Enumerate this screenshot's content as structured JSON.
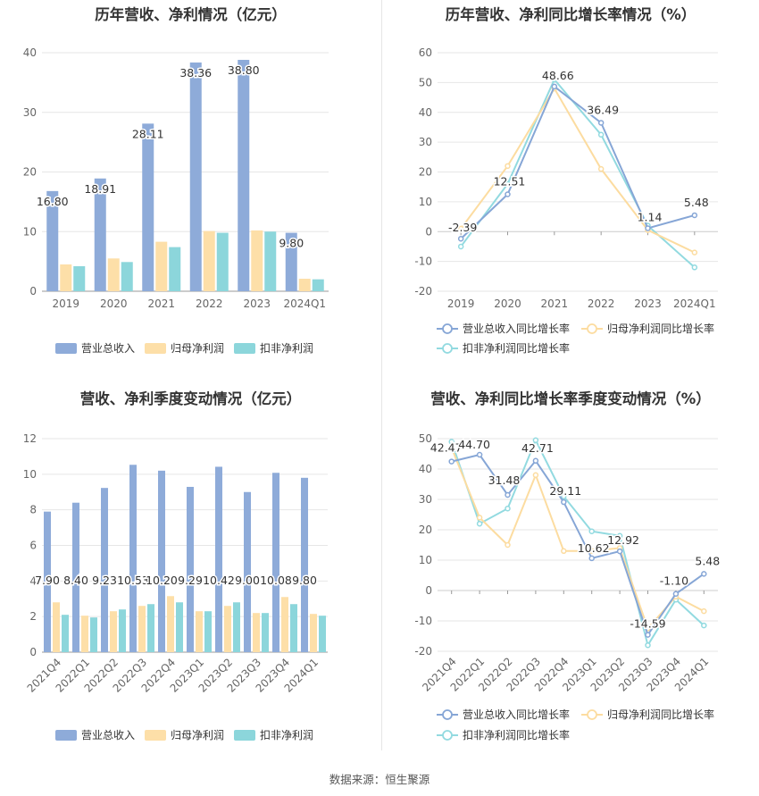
{
  "footer": {
    "source": "数据来源：恒生聚源"
  },
  "legend_labels": {
    "revenue": "营业总收入",
    "net_profit": "归母净利润",
    "deducted_profit": "扣非净利润",
    "revenue_growth": "营业总收入同比增长率",
    "net_profit_growth": "归母净利润同比增长率",
    "deducted_growth": "扣非净利润同比增长率"
  },
  "colors": {
    "revenue": "#8eabd9",
    "net_profit": "#fddfa8",
    "deducted_profit": "#8cd6db",
    "revenue_line": "#86a6d6",
    "net_line": "#fcdca0",
    "deducted_line": "#92dae0",
    "grid": "#e6e6e6",
    "axis_text": "#666666"
  },
  "chart_data": [
    {
      "type": "bar",
      "title": "历年营收、净利情况（亿元）",
      "categories": [
        "2019",
        "2020",
        "2021",
        "2022",
        "2023",
        "2024Q1"
      ],
      "ylim": [
        0,
        40
      ],
      "yticks": [
        0,
        10,
        20,
        30,
        40
      ],
      "series": [
        {
          "name": "营业总收入",
          "values": [
            16.8,
            18.91,
            28.11,
            38.36,
            38.8,
            9.8
          ],
          "labels": [
            "16.80",
            "18.91",
            "28.11",
            "38.36",
            "38.80",
            "9.80"
          ]
        },
        {
          "name": "归母净利润",
          "values": [
            4.5,
            5.5,
            8.3,
            10.1,
            10.2,
            2.1
          ]
        },
        {
          "name": "扣非净利润",
          "values": [
            4.2,
            4.9,
            7.4,
            9.8,
            10.0,
            2.0
          ]
        }
      ],
      "grid": true,
      "legend": "bottom"
    },
    {
      "type": "line",
      "title": "历年营收、净利同比增长率情况（%）",
      "categories": [
        "2019",
        "2020",
        "2021",
        "2022",
        "2023",
        "2024Q1"
      ],
      "ylim": [
        -20,
        60
      ],
      "yticks": [
        -20,
        -10,
        0,
        10,
        20,
        30,
        40,
        50,
        60
      ],
      "series": [
        {
          "name": "营业总收入同比增长率",
          "values": [
            -2.39,
            12.51,
            48.66,
            36.49,
            1.14,
            5.48
          ],
          "labels": [
            "-2.39",
            "12.51",
            "48.66",
            "36.49",
            "1.14",
            "5.48"
          ]
        },
        {
          "name": "归母净利润同比增长率",
          "values": [
            1.0,
            22.0,
            48.0,
            21.0,
            0.5,
            -7.0
          ]
        },
        {
          "name": "扣非净利润同比增长率",
          "values": [
            -5.0,
            16.0,
            51.0,
            32.5,
            2.0,
            -12.0
          ]
        }
      ],
      "grid": true,
      "legend": "bottom"
    },
    {
      "type": "bar",
      "title": "营收、净利季度变动情况（亿元）",
      "categories": [
        "2021Q4",
        "2022Q1",
        "2022Q2",
        "2022Q3",
        "2022Q4",
        "2023Q1",
        "2023Q2",
        "2023Q3",
        "2023Q4",
        "2024Q1"
      ],
      "ylim": [
        0,
        12
      ],
      "yticks": [
        0,
        2,
        4,
        6,
        8,
        10,
        12
      ],
      "series": [
        {
          "name": "营业总收入",
          "values": [
            7.9,
            8.4,
            9.23,
            10.53,
            10.2,
            9.29,
            10.42,
            9.0,
            10.08,
            9.8
          ],
          "labels": [
            "7.90",
            "8.40",
            "9.23",
            "10.53",
            "10.20",
            "9.29",
            "10.42",
            "9.00",
            "10.08",
            "9.80"
          ]
        },
        {
          "name": "归母净利润",
          "values": [
            2.8,
            2.05,
            2.3,
            2.6,
            3.15,
            2.3,
            2.6,
            2.2,
            3.1,
            2.15
          ]
        },
        {
          "name": "扣非净利润",
          "values": [
            2.1,
            1.95,
            2.4,
            2.7,
            2.8,
            2.3,
            2.8,
            2.2,
            2.7,
            2.05
          ]
        }
      ],
      "grid": true,
      "legend": "bottom"
    },
    {
      "type": "line",
      "title": "营收、净利同比增长率季度变动情况（%）",
      "categories": [
        "2021Q4",
        "2022Q1",
        "2022Q2",
        "2022Q3",
        "2022Q4",
        "2023Q1",
        "2023Q2",
        "2023Q3",
        "2023Q4",
        "2024Q1"
      ],
      "ylim": [
        -20,
        50
      ],
      "yticks": [
        -20,
        -10,
        0,
        10,
        20,
        30,
        40,
        50
      ],
      "series": [
        {
          "name": "营业总收入同比增长率",
          "values": [
            42.47,
            44.7,
            31.48,
            42.71,
            29.11,
            10.62,
            12.92,
            -14.59,
            -1.1,
            5.48
          ],
          "labels": [
            "42.47",
            "44.70",
            "31.48",
            "42.71",
            "29.11",
            "10.62",
            "12.92",
            "-14.59",
            "-1.10",
            "5.48"
          ]
        },
        {
          "name": "归母净利润同比增长率",
          "values": [
            47.0,
            24.0,
            15.0,
            38.0,
            13.0,
            13.0,
            14.0,
            -12.5,
            -2.0,
            -6.8
          ]
        },
        {
          "name": "扣非净利润同比增长率",
          "values": [
            49.0,
            22.0,
            27.0,
            49.5,
            31.0,
            19.5,
            18.0,
            -18.0,
            -3.0,
            -11.5
          ]
        }
      ],
      "grid": true,
      "legend": "bottom"
    }
  ]
}
